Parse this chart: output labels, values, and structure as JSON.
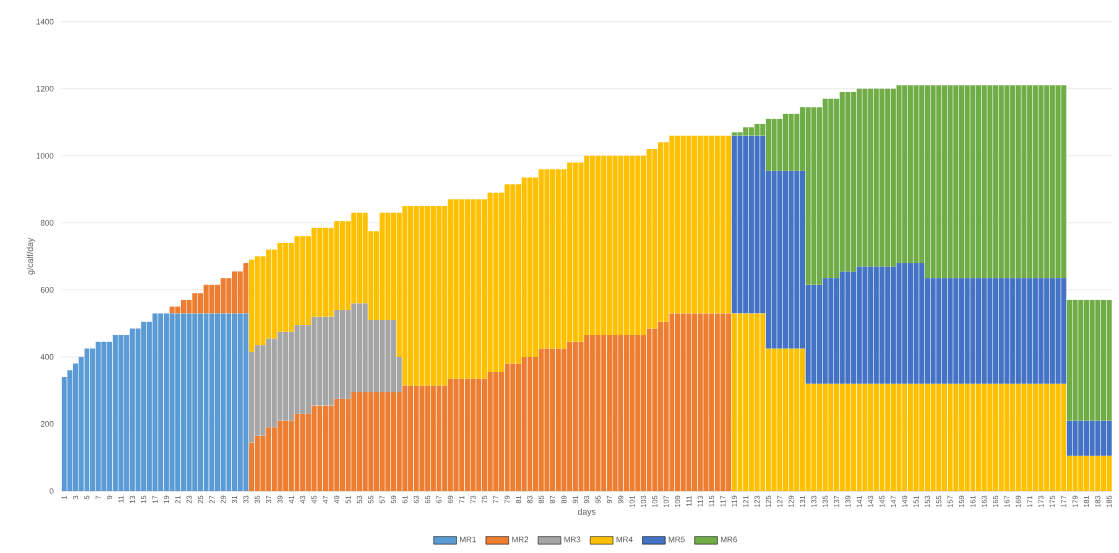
{
  "chart_data": {
    "type": "bar",
    "stacked": true,
    "xlabel": "days",
    "ylabel": "g/calf/day",
    "categories": [
      "1",
      null,
      "3",
      null,
      "5",
      null,
      "7",
      null,
      "9",
      null,
      "11",
      null,
      "13",
      null,
      "15",
      null,
      "17",
      null,
      "19",
      null,
      "21",
      null,
      "23",
      null,
      "25",
      null,
      "27",
      null,
      "29",
      null,
      "31",
      null,
      "33",
      null,
      "35",
      null,
      "37",
      null,
      "39",
      null,
      "41",
      null,
      "43",
      null,
      "45",
      null,
      "47",
      null,
      "49",
      null,
      "51",
      null,
      "53",
      null,
      "55",
      null,
      "57",
      null,
      "59",
      null,
      "61",
      null,
      "63",
      null,
      "65",
      null,
      "67",
      null,
      "69",
      null,
      "71",
      null,
      "73",
      null,
      "75",
      null,
      "77",
      null,
      "79",
      null,
      "81",
      null,
      "83",
      null,
      "85",
      null,
      "87",
      null,
      "89",
      null,
      "91",
      null,
      "93",
      null,
      "95",
      null,
      "97",
      null,
      "99",
      null,
      "101",
      null,
      "103",
      null,
      "105",
      null,
      "107",
      null,
      "109",
      null,
      "111",
      null,
      "113",
      null,
      "115",
      null,
      "117",
      null,
      "119",
      null,
      "121",
      null,
      "123",
      null,
      "125",
      null,
      "127",
      null,
      "129",
      null,
      "131",
      null,
      "133",
      null,
      "135",
      null,
      "137",
      null,
      "139",
      null,
      "141",
      null,
      "143",
      null,
      "145",
      null,
      "147",
      null,
      "149",
      null,
      "151",
      null,
      "153",
      null,
      "155",
      null,
      "157",
      null,
      "159",
      null,
      "161",
      null,
      "163",
      null,
      "165",
      null,
      "167",
      null,
      "169",
      null,
      "171",
      null,
      "173",
      null,
      "175",
      null,
      "177",
      null,
      "179",
      null,
      "181",
      null,
      "183",
      null,
      "185"
    ],
    "series": [
      {
        "name": "MR1",
        "color": "#5b9bd5",
        "values": [
          340,
          360,
          380,
          400,
          425,
          425,
          445,
          445,
          445,
          465,
          465,
          465,
          485,
          485,
          505,
          505,
          530,
          530,
          530,
          530,
          530,
          530,
          530,
          530,
          530,
          530,
          530,
          530,
          530,
          530,
          530,
          530,
          530,
          null,
          null,
          null,
          null,
          null,
          null,
          null,
          null,
          null,
          null,
          null,
          null,
          null,
          null,
          null,
          null,
          null,
          null,
          null,
          null,
          null,
          null,
          null,
          null,
          null,
          null,
          null,
          null,
          null,
          null,
          null,
          null,
          null,
          null,
          null,
          null,
          null,
          null,
          null,
          null,
          null,
          null,
          null,
          null,
          null,
          null,
          null,
          null,
          null,
          null,
          null,
          null,
          null,
          null,
          null,
          null,
          null,
          null,
          null,
          null,
          null,
          null,
          null,
          null,
          null,
          null,
          null,
          null,
          null,
          null,
          null,
          null,
          null,
          null,
          null,
          null,
          null,
          null,
          null,
          null,
          null,
          null,
          null,
          null,
          null,
          null,
          null,
          null,
          null,
          null,
          null,
          null,
          null,
          null,
          null,
          null,
          null,
          null,
          null,
          null,
          null,
          null,
          null,
          null,
          null,
          null,
          null,
          null,
          null,
          null,
          null,
          null,
          null,
          null,
          null,
          null,
          null,
          null,
          null,
          null,
          null,
          null,
          null,
          null,
          null,
          null,
          null,
          null,
          null,
          null,
          null,
          null,
          null,
          null,
          null,
          null,
          null,
          null,
          null,
          null,
          null,
          null,
          null,
          null,
          null,
          null,
          null,
          null,
          null,
          null,
          null,
          null
        ]
      },
      {
        "name": "MR2",
        "color": "#ed7d31",
        "values": [
          null,
          null,
          null,
          null,
          null,
          null,
          null,
          null,
          null,
          null,
          null,
          null,
          null,
          null,
          null,
          null,
          null,
          null,
          null,
          20,
          20,
          40,
          40,
          60,
          60,
          85,
          85,
          85,
          105,
          105,
          125,
          125,
          150,
          145,
          165,
          165,
          190,
          190,
          210,
          210,
          210,
          230,
          230,
          230,
          255,
          255,
          255,
          255,
          275,
          275,
          275,
          295,
          295,
          295,
          295,
          295,
          295,
          295,
          295,
          295,
          315,
          315,
          315,
          315,
          315,
          315,
          315,
          315,
          335,
          335,
          335,
          335,
          335,
          335,
          335,
          355,
          355,
          355,
          380,
          380,
          380,
          400,
          400,
          400,
          425,
          425,
          425,
          425,
          425,
          445,
          445,
          445,
          465,
          465,
          465,
          465,
          465,
          465,
          465,
          465,
          465,
          465,
          465,
          485,
          485,
          505,
          505,
          530,
          530,
          530,
          530,
          530,
          530,
          530,
          530,
          530,
          530,
          530,
          null,
          null,
          null,
          null,
          null,
          null,
          null,
          null,
          null,
          null,
          null,
          null,
          null,
          null,
          null,
          null,
          null,
          null,
          null,
          null,
          null,
          null,
          null,
          null,
          null,
          null,
          null,
          null,
          null,
          null,
          null,
          null,
          null,
          null,
          null,
          null,
          null,
          null,
          null,
          null,
          null,
          null,
          null,
          null,
          null,
          null,
          null,
          null,
          null,
          null,
          null,
          null,
          null,
          null,
          null,
          null,
          null,
          null,
          null,
          null,
          null,
          null,
          null,
          null,
          null,
          null,
          null
        ]
      },
      {
        "name": "MR3",
        "color": "#a5a5a5",
        "values": [
          null,
          null,
          null,
          null,
          null,
          null,
          null,
          null,
          null,
          null,
          null,
          null,
          null,
          null,
          null,
          null,
          null,
          null,
          null,
          null,
          null,
          null,
          null,
          null,
          null,
          null,
          null,
          null,
          null,
          null,
          null,
          null,
          null,
          270,
          270,
          270,
          265,
          265,
          265,
          265,
          265,
          265,
          265,
          265,
          265,
          265,
          265,
          265,
          265,
          265,
          265,
          265,
          265,
          265,
          215,
          215,
          215,
          215,
          215,
          105,
          null,
          null,
          null,
          null,
          null,
          null,
          null,
          null,
          null,
          null,
          null,
          null,
          null,
          null,
          null,
          null,
          null,
          null,
          null,
          null,
          null,
          null,
          null,
          null,
          null,
          null,
          null,
          null,
          null,
          null,
          null,
          null,
          null,
          null,
          null,
          null,
          null,
          null,
          null,
          null,
          null,
          null,
          null,
          null,
          null,
          null,
          null,
          null,
          null,
          null,
          null,
          null,
          null,
          null,
          null,
          null,
          null,
          null,
          null,
          null,
          null,
          null,
          null,
          null,
          null,
          null,
          null,
          null,
          null,
          null,
          null,
          null,
          null,
          null,
          null,
          null,
          null,
          null,
          null,
          null,
          null,
          null,
          null,
          null,
          null,
          null,
          null,
          null,
          null,
          null,
          null,
          null,
          null,
          null,
          null,
          null,
          null,
          null,
          null,
          null,
          null,
          null,
          null,
          null,
          null,
          null,
          null,
          null,
          null,
          null,
          null,
          null,
          null,
          null,
          null,
          null,
          null,
          null,
          null,
          null,
          null,
          null,
          null,
          null,
          null
        ]
      },
      {
        "name": "MR4",
        "color": "#ffc000",
        "values": [
          null,
          null,
          null,
          null,
          null,
          null,
          null,
          null,
          null,
          null,
          null,
          null,
          null,
          null,
          null,
          null,
          null,
          null,
          null,
          null,
          null,
          null,
          null,
          null,
          null,
          null,
          null,
          null,
          null,
          null,
          null,
          null,
          null,
          275,
          265,
          265,
          265,
          265,
          265,
          265,
          265,
          265,
          265,
          265,
          265,
          265,
          265,
          265,
          265,
          265,
          265,
          270,
          270,
          270,
          265,
          265,
          320,
          320,
          320,
          430,
          535,
          535,
          535,
          535,
          535,
          535,
          535,
          535,
          535,
          535,
          535,
          535,
          535,
          535,
          535,
          535,
          535,
          535,
          535,
          535,
          535,
          535,
          535,
          535,
          535,
          535,
          535,
          535,
          535,
          535,
          535,
          535,
          535,
          535,
          535,
          535,
          535,
          535,
          535,
          535,
          535,
          535,
          535,
          535,
          535,
          535,
          535,
          530,
          530,
          530,
          530,
          530,
          530,
          530,
          530,
          530,
          530,
          530,
          530,
          530,
          530,
          530,
          530,
          530,
          425,
          425,
          425,
          425,
          425,
          425,
          425,
          320,
          320,
          320,
          320,
          320,
          320,
          320,
          320,
          320,
          320,
          320,
          320,
          320,
          320,
          320,
          320,
          320,
          320,
          320,
          320,
          320,
          320,
          320,
          320,
          320,
          320,
          320,
          320,
          320,
          320,
          320,
          320,
          320,
          320,
          320,
          320,
          320,
          320,
          320,
          320,
          320,
          320,
          320,
          320,
          320,
          320,
          105,
          105,
          105,
          105,
          105,
          105,
          105,
          105
        ]
      },
      {
        "name": "MR5",
        "color": "#4472c4",
        "values": [
          null,
          null,
          null,
          null,
          null,
          null,
          null,
          null,
          null,
          null,
          null,
          null,
          null,
          null,
          null,
          null,
          null,
          null,
          null,
          null,
          null,
          null,
          null,
          null,
          null,
          null,
          null,
          null,
          null,
          null,
          null,
          null,
          null,
          null,
          null,
          null,
          null,
          null,
          null,
          null,
          null,
          null,
          null,
          null,
          null,
          null,
          null,
          null,
          null,
          null,
          null,
          null,
          null,
          null,
          null,
          null,
          null,
          null,
          null,
          null,
          null,
          null,
          null,
          null,
          null,
          null,
          null,
          null,
          null,
          null,
          null,
          null,
          null,
          null,
          null,
          null,
          null,
          null,
          null,
          null,
          null,
          null,
          null,
          null,
          null,
          null,
          null,
          null,
          null,
          null,
          null,
          null,
          null,
          null,
          null,
          null,
          null,
          null,
          null,
          null,
          null,
          null,
          null,
          null,
          null,
          null,
          null,
          null,
          null,
          null,
          null,
          null,
          null,
          null,
          null,
          null,
          null,
          null,
          530,
          530,
          530,
          530,
          530,
          530,
          530,
          530,
          530,
          530,
          530,
          530,
          530,
          295,
          295,
          295,
          315,
          315,
          315,
          335,
          335,
          335,
          350,
          350,
          350,
          350,
          350,
          350,
          350,
          360,
          360,
          360,
          360,
          360,
          315,
          315,
          315,
          315,
          315,
          315,
          315,
          315,
          315,
          315,
          315,
          315,
          315,
          315,
          315,
          315,
          315,
          315,
          315,
          315,
          315,
          315,
          315,
          315,
          315,
          105,
          105,
          105,
          105,
          105,
          105,
          105,
          105
        ]
      },
      {
        "name": "MR6",
        "color": "#70ad47",
        "values": [
          null,
          null,
          null,
          null,
          null,
          null,
          null,
          null,
          null,
          null,
          null,
          null,
          null,
          null,
          null,
          null,
          null,
          null,
          null,
          null,
          null,
          null,
          null,
          null,
          null,
          null,
          null,
          null,
          null,
          null,
          null,
          null,
          null,
          null,
          null,
          null,
          null,
          null,
          null,
          null,
          null,
          null,
          null,
          null,
          null,
          null,
          null,
          null,
          null,
          null,
          null,
          null,
          null,
          null,
          null,
          null,
          null,
          null,
          null,
          null,
          null,
          null,
          null,
          null,
          null,
          null,
          null,
          null,
          null,
          null,
          null,
          null,
          null,
          null,
          null,
          null,
          null,
          null,
          null,
          null,
          null,
          null,
          null,
          null,
          null,
          null,
          null,
          null,
          null,
          null,
          null,
          null,
          null,
          null,
          null,
          null,
          null,
          null,
          null,
          null,
          null,
          null,
          null,
          null,
          null,
          null,
          null,
          null,
          null,
          null,
          null,
          null,
          null,
          null,
          null,
          null,
          null,
          null,
          10,
          10,
          25,
          25,
          35,
          35,
          155,
          155,
          155,
          170,
          170,
          170,
          190,
          530,
          530,
          530,
          535,
          535,
          535,
          535,
          535,
          535,
          530,
          530,
          530,
          530,
          530,
          530,
          530,
          530,
          530,
          530,
          530,
          530,
          575,
          575,
          575,
          575,
          575,
          575,
          575,
          575,
          575,
          575,
          575,
          575,
          575,
          575,
          575,
          575,
          575,
          575,
          575,
          575,
          575,
          575,
          575,
          575,
          575,
          360,
          360,
          360,
          360,
          360,
          360,
          360,
          360
        ]
      }
    ],
    "ylim": [
      0,
      1400
    ],
    "yticks": [
      0,
      200,
      400,
      600,
      800,
      1000,
      1200,
      1400
    ],
    "grid": "y",
    "legend": "bottom"
  }
}
